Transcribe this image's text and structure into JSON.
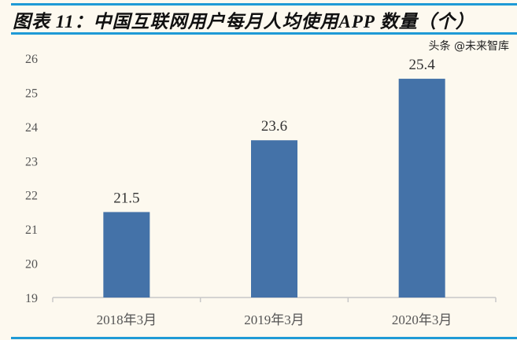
{
  "title": "图表 11：中国互联网用户每月人均使用APP 数量（个）",
  "watermark": "头条 @未来智库",
  "colors": {
    "bar": "#4472a8",
    "rule": "#1e9ad6",
    "background": "#fdf9ef"
  },
  "chart_data": {
    "type": "bar",
    "title": "图表 11：中国互联网用户每月人均使用APP 数量（个）",
    "categories": [
      "2018年3月",
      "2019年3月",
      "2020年3月"
    ],
    "values": [
      21.5,
      23.6,
      25.4
    ],
    "data_labels": [
      "21.5",
      "23.6",
      "25.4"
    ],
    "xlabel": "",
    "ylabel": "",
    "ylim": [
      19,
      26
    ],
    "yticks": [
      "19",
      "20",
      "21",
      "22",
      "23",
      "24",
      "25",
      "26"
    ],
    "grid": false,
    "legend": "none"
  }
}
